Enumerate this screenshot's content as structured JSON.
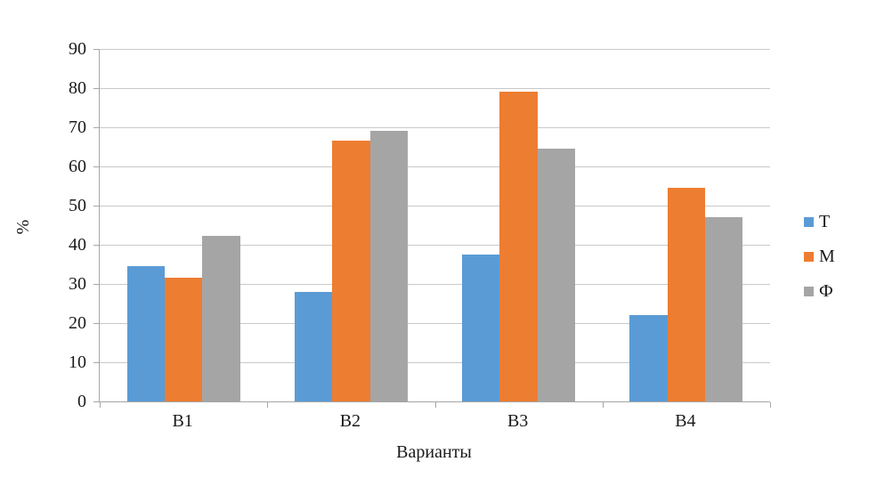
{
  "chart_data": {
    "type": "bar",
    "title": "",
    "xlabel": "Варианты",
    "ylabel": "%",
    "categories": [
      "В1",
      "В2",
      "В3",
      "В4"
    ],
    "series": [
      {
        "name": "Т",
        "color": "#5B9BD5",
        "values": [
          34.5,
          28,
          37.5,
          22
        ]
      },
      {
        "name": "М",
        "color": "#ED7D31",
        "values": [
          31.7,
          66.5,
          79,
          54.5
        ]
      },
      {
        "name": "Ф",
        "color": "#A5A5A5",
        "values": [
          42.2,
          69,
          64.5,
          47
        ]
      }
    ],
    "ylim": [
      0,
      90
    ],
    "ytick_step": 10,
    "grid": "horizontal",
    "legend_position": "right",
    "colors": {
      "gridline": "#C9C9C9",
      "axis": "#A6A6A6",
      "text": "#1A1A1A",
      "background": "#FFFFFF"
    }
  }
}
